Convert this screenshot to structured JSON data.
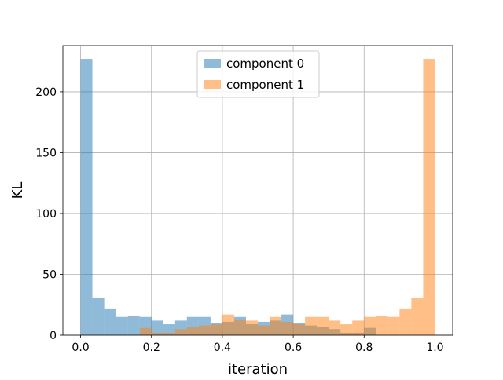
{
  "chart_data": {
    "type": "bar",
    "title": "",
    "xlabel": "iteration",
    "ylabel": "KL",
    "xlim": [
      -0.05,
      1.05
    ],
    "ylim": [
      0,
      238
    ],
    "xticks": [
      0.0,
      0.2,
      0.4,
      0.6,
      0.8,
      1.0
    ],
    "xtick_labels": [
      "0.0",
      "0.2",
      "0.4",
      "0.6",
      "0.8",
      "1.0"
    ],
    "yticks": [
      0,
      50,
      100,
      150,
      200
    ],
    "ytick_labels": [
      "0",
      "50",
      "100",
      "150",
      "200"
    ],
    "grid": true,
    "legend_position": "upper center",
    "bin_width": 0.0333,
    "series": [
      {
        "name": "component 0",
        "color": "#1f77b4",
        "opacity": 0.5,
        "bins": [
          {
            "x0": 0.0,
            "x1": 0.0333,
            "count": 227
          },
          {
            "x0": 0.0333,
            "x1": 0.0667,
            "count": 31
          },
          {
            "x0": 0.0667,
            "x1": 0.1,
            "count": 22
          },
          {
            "x0": 0.1,
            "x1": 0.1333,
            "count": 15
          },
          {
            "x0": 0.1333,
            "x1": 0.1667,
            "count": 16
          },
          {
            "x0": 0.1667,
            "x1": 0.2,
            "count": 15
          },
          {
            "x0": 0.2,
            "x1": 0.2333,
            "count": 12
          },
          {
            "x0": 0.2333,
            "x1": 0.2667,
            "count": 9
          },
          {
            "x0": 0.2667,
            "x1": 0.3,
            "count": 12
          },
          {
            "x0": 0.3,
            "x1": 0.3333,
            "count": 15
          },
          {
            "x0": 0.3333,
            "x1": 0.3667,
            "count": 15
          },
          {
            "x0": 0.3667,
            "x1": 0.4,
            "count": 10
          },
          {
            "x0": 0.4,
            "x1": 0.4333,
            "count": 11
          },
          {
            "x0": 0.4333,
            "x1": 0.4667,
            "count": 15
          },
          {
            "x0": 0.4667,
            "x1": 0.5,
            "count": 9
          },
          {
            "x0": 0.5,
            "x1": 0.5333,
            "count": 11
          },
          {
            "x0": 0.5333,
            "x1": 0.5667,
            "count": 12
          },
          {
            "x0": 0.5667,
            "x1": 0.6,
            "count": 17
          },
          {
            "x0": 0.6,
            "x1": 0.6333,
            "count": 10
          },
          {
            "x0": 0.6333,
            "x1": 0.6667,
            "count": 8
          },
          {
            "x0": 0.6667,
            "x1": 0.7,
            "count": 7
          },
          {
            "x0": 0.7,
            "x1": 0.7333,
            "count": 5
          },
          {
            "x0": 0.7333,
            "x1": 0.7667,
            "count": 2
          },
          {
            "x0": 0.7667,
            "x1": 0.8,
            "count": 2
          },
          {
            "x0": 0.8,
            "x1": 0.8333,
            "count": 6
          }
        ]
      },
      {
        "name": "component 1",
        "color": "#ff7f0e",
        "opacity": 0.5,
        "bins": [
          {
            "x0": 0.1667,
            "x1": 0.2,
            "count": 6
          },
          {
            "x0": 0.2,
            "x1": 0.2333,
            "count": 2
          },
          {
            "x0": 0.2333,
            "x1": 0.2667,
            "count": 2
          },
          {
            "x0": 0.2667,
            "x1": 0.3,
            "count": 5
          },
          {
            "x0": 0.3,
            "x1": 0.3333,
            "count": 7
          },
          {
            "x0": 0.3333,
            "x1": 0.3667,
            "count": 8
          },
          {
            "x0": 0.3667,
            "x1": 0.4,
            "count": 9
          },
          {
            "x0": 0.4,
            "x1": 0.4333,
            "count": 17
          },
          {
            "x0": 0.4333,
            "x1": 0.4667,
            "count": 13
          },
          {
            "x0": 0.4667,
            "x1": 0.5,
            "count": 12
          },
          {
            "x0": 0.5,
            "x1": 0.5333,
            "count": 8
          },
          {
            "x0": 0.5333,
            "x1": 0.5667,
            "count": 15
          },
          {
            "x0": 0.5667,
            "x1": 0.6,
            "count": 11
          },
          {
            "x0": 0.6,
            "x1": 0.6333,
            "count": 9
          },
          {
            "x0": 0.6333,
            "x1": 0.6667,
            "count": 15
          },
          {
            "x0": 0.6667,
            "x1": 0.7,
            "count": 15
          },
          {
            "x0": 0.7,
            "x1": 0.7333,
            "count": 12
          },
          {
            "x0": 0.7333,
            "x1": 0.7667,
            "count": 9
          },
          {
            "x0": 0.7667,
            "x1": 0.8,
            "count": 12
          },
          {
            "x0": 0.8,
            "x1": 0.8333,
            "count": 15
          },
          {
            "x0": 0.8333,
            "x1": 0.8667,
            "count": 16
          },
          {
            "x0": 0.8667,
            "x1": 0.9,
            "count": 15
          },
          {
            "x0": 0.9,
            "x1": 0.9333,
            "count": 22
          },
          {
            "x0": 0.9333,
            "x1": 0.9667,
            "count": 31
          },
          {
            "x0": 0.9667,
            "x1": 1.0,
            "count": 227
          }
        ]
      }
    ]
  }
}
